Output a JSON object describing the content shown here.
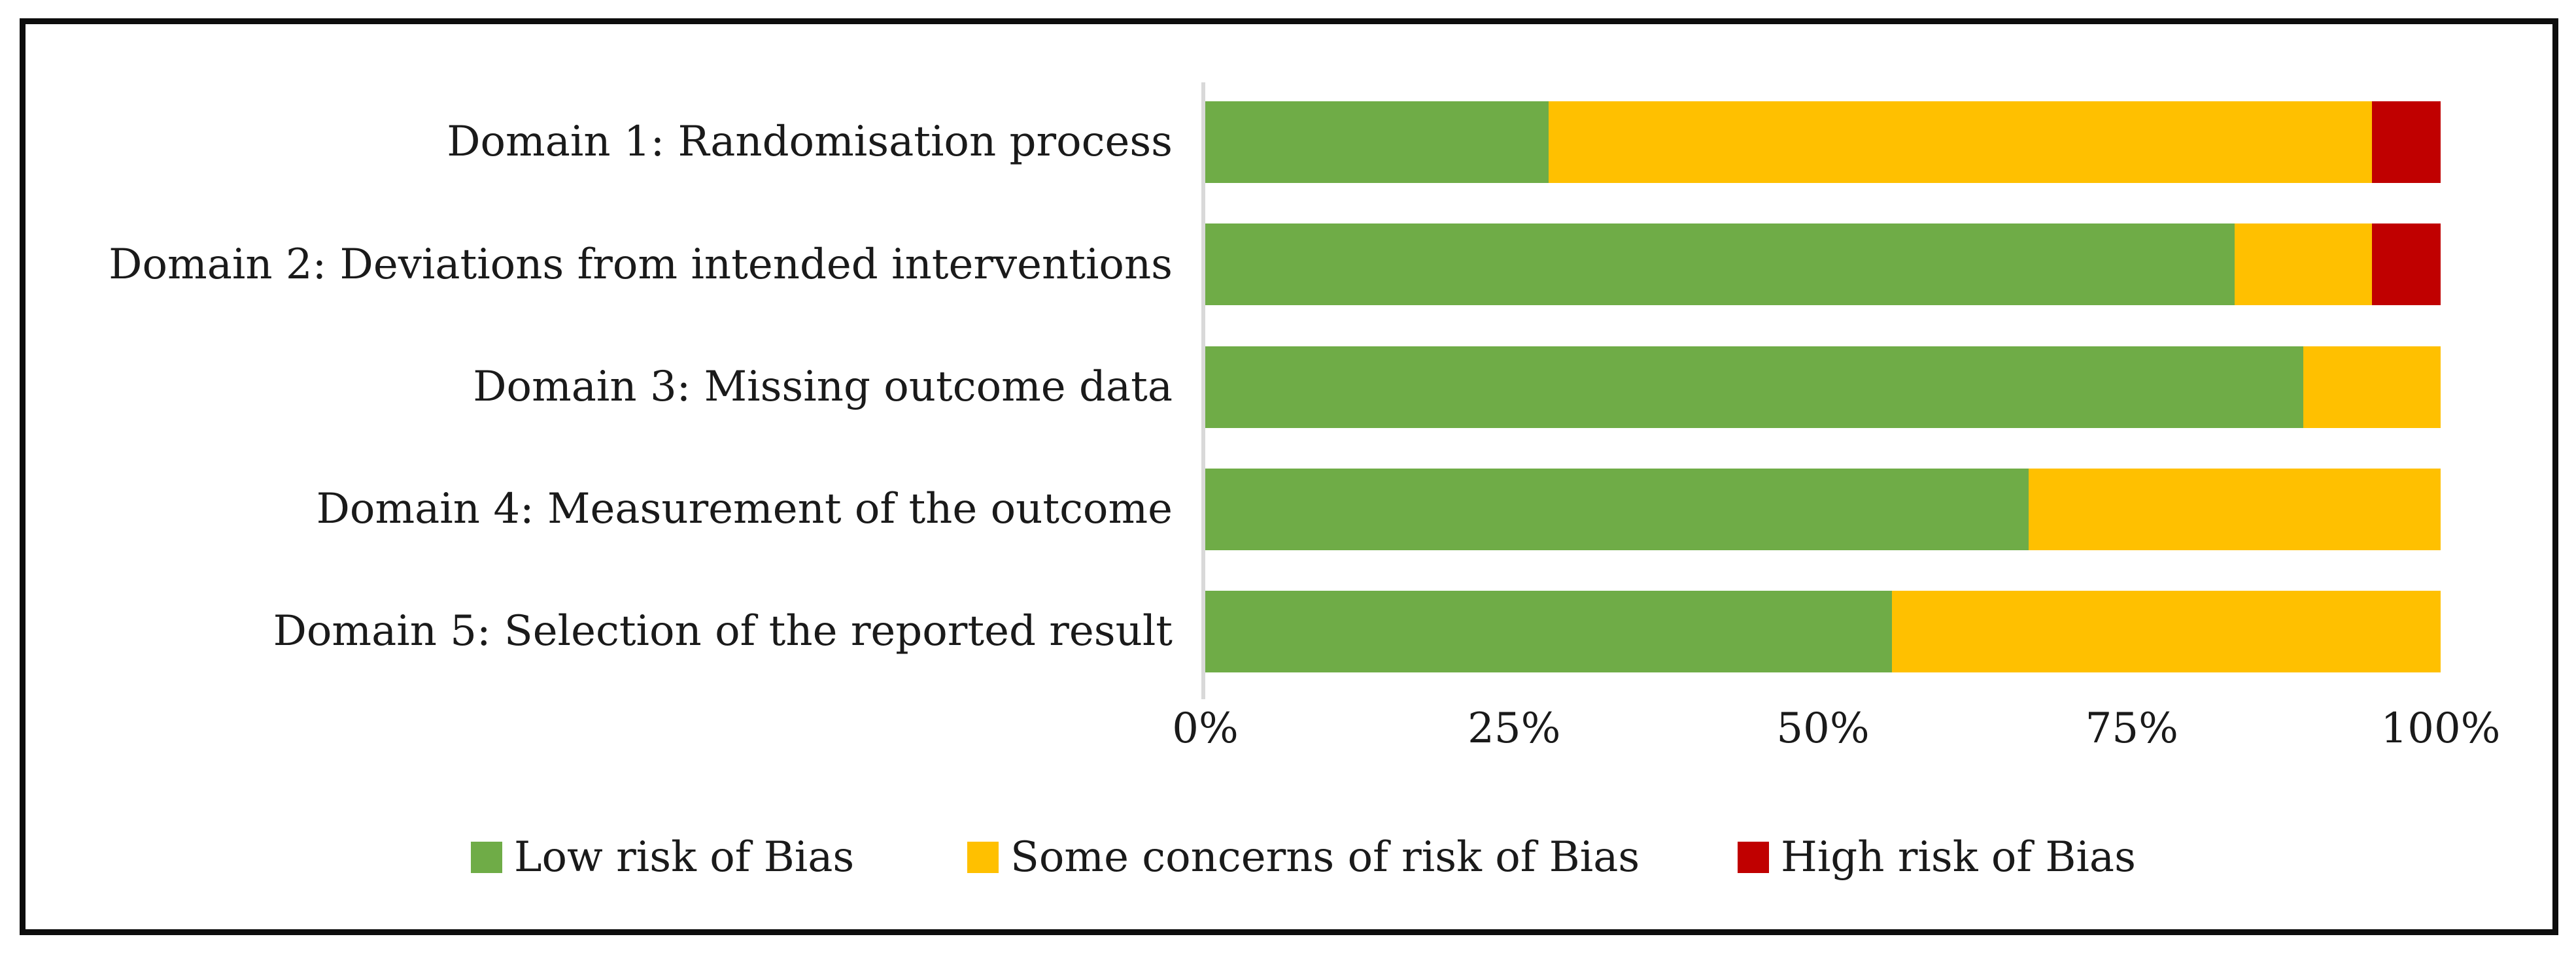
{
  "chart_data": {
    "type": "bar",
    "orientation": "horizontal",
    "stacked": true,
    "title": "",
    "xlabel": "",
    "ylabel": "",
    "categories": [
      "Domain 1: Randomisation process",
      "Domain 2: Deviations from intended interventions",
      "Domain 3: Missing outcome data",
      "Domain 4: Measurement of the outcome",
      "Domain 5: Selection of the reported result"
    ],
    "series": [
      {
        "name": "Low risk of Bias",
        "color": "#6FAC47",
        "values": [
          27.78,
          83.33,
          88.89,
          66.67,
          55.56
        ]
      },
      {
        "name": "Some concerns of risk of Bias",
        "color": "#FFC000",
        "values": [
          66.67,
          11.11,
          11.11,
          33.33,
          44.44
        ]
      },
      {
        "name": "High risk of Bias",
        "color": "#C00000",
        "values": [
          5.56,
          5.56,
          0,
          0,
          0
        ]
      }
    ],
    "x_ticks": [
      "0%",
      "25%",
      "50%",
      "75%",
      "100%"
    ],
    "xlim": [
      0,
      100
    ],
    "grid": false,
    "legend_position": "bottom",
    "axis_color": "#D9D9D9",
    "text_color": "#1A1A1A"
  }
}
